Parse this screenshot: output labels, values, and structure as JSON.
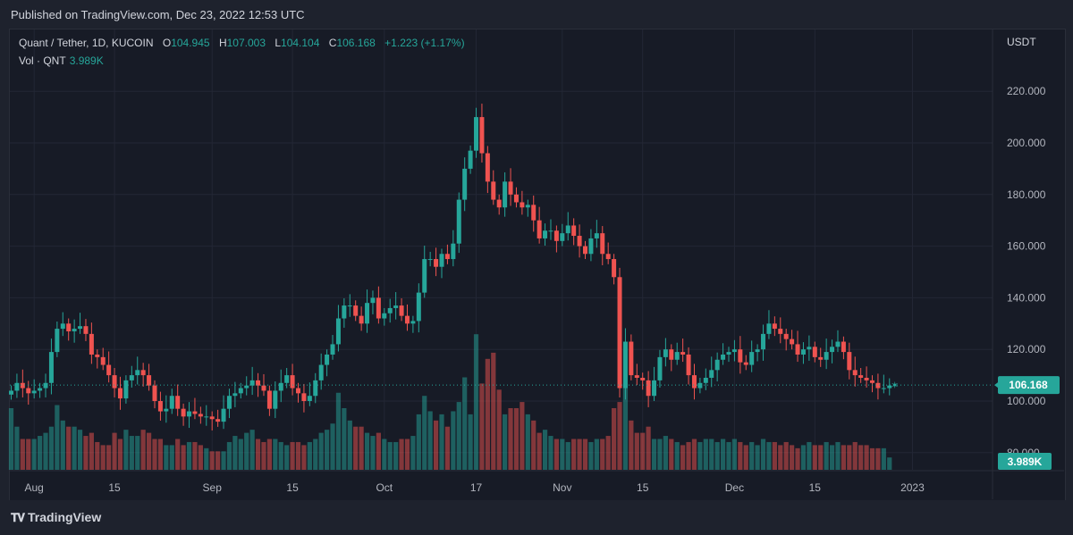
{
  "header": {
    "published": "Published on TradingView.com, Dec 23, 2022 12:53 UTC"
  },
  "legend": {
    "symbol": "Quant / Tether, 1D, KUCOIN",
    "open_label": "O",
    "open": "104.945",
    "high_label": "H",
    "high": "107.003",
    "low_label": "L",
    "low": "104.104",
    "close_label": "C",
    "close": "106.168",
    "change": "+1.223 (+1.17%)",
    "volume_label": "Vol · QNT",
    "volume": "3.989K"
  },
  "axis": {
    "currency": "USDT"
  },
  "badges": {
    "price": "106.168",
    "volume": "3.989K"
  },
  "footer": {
    "brand": "TradingView"
  },
  "colors": {
    "up": "#26a69a",
    "down": "#ef5350",
    "background": "#171b26",
    "grid": "#232735"
  },
  "chart_data": {
    "type": "candlestick",
    "y_ticks": [
      80,
      100,
      120,
      140,
      160,
      180,
      200,
      220
    ],
    "y_tick_labels": [
      "80.000",
      "100.000",
      "120.000",
      "140.000",
      "160.000",
      "180.000",
      "200.000",
      "220.000"
    ],
    "x_tick_labels": [
      {
        "label": "Aug",
        "date": "2022-08-01"
      },
      {
        "label": "15",
        "date": "2022-08-15"
      },
      {
        "label": "Sep",
        "date": "2022-09-01"
      },
      {
        "label": "15",
        "date": "2022-09-15"
      },
      {
        "label": "Oct",
        "date": "2022-10-01"
      },
      {
        "label": "17",
        "date": "2022-10-17"
      },
      {
        "label": "Nov",
        "date": "2022-11-01"
      },
      {
        "label": "15",
        "date": "2022-11-15"
      },
      {
        "label": "Dec",
        "date": "2022-12-01"
      },
      {
        "label": "15",
        "date": "2022-12-15"
      },
      {
        "label": "2023",
        "date": "2023-01-01"
      }
    ],
    "last_price": 106.168,
    "last_volume": "3.989K",
    "close_series": [
      104,
      107,
      105,
      103,
      104,
      105,
      107,
      119,
      128,
      130,
      127,
      128,
      129,
      126,
      118,
      117,
      114,
      110,
      105,
      101,
      108,
      110,
      112,
      110,
      106,
      100,
      96,
      97,
      102,
      97,
      94,
      96,
      95,
      94,
      94,
      93,
      92,
      97,
      102,
      103,
      105,
      106,
      108,
      106,
      104,
      97,
      104,
      107,
      110,
      105,
      103,
      100,
      102,
      108,
      114,
      118,
      122,
      132,
      137,
      137,
      133,
      130,
      138,
      140,
      132,
      134,
      136,
      137,
      133,
      130,
      131,
      142,
      155,
      155,
      152,
      157,
      155,
      161,
      178,
      190,
      197,
      210,
      196,
      185,
      178,
      175,
      185,
      180,
      177,
      175,
      176,
      170,
      163,
      166,
      166,
      162,
      165,
      168,
      164,
      160,
      157,
      163,
      165,
      157,
      155,
      148,
      105,
      123,
      110,
      109,
      108,
      102,
      108,
      117,
      120,
      116,
      119,
      118,
      110,
      105,
      107,
      109,
      112,
      116,
      118,
      119,
      120,
      115,
      114,
      119,
      120,
      126,
      130,
      128,
      126,
      124,
      122,
      118,
      120,
      121,
      117,
      116,
      119,
      121,
      123,
      119,
      112,
      110,
      109,
      108,
      107,
      105,
      105,
      106
    ],
    "volume_series": [
      20,
      14,
      10,
      10,
      10,
      11,
      12,
      14,
      21,
      16,
      14,
      14,
      13,
      11,
      12,
      9,
      8,
      8,
      12,
      10,
      13,
      11,
      11,
      13,
      12,
      10,
      10,
      8,
      8,
      10,
      8,
      9,
      9,
      8,
      7,
      6,
      6,
      6,
      9,
      11,
      10,
      12,
      13,
      10,
      9,
      10,
      10,
      9,
      8,
      9,
      9,
      8,
      9,
      10,
      12,
      13,
      15,
      25,
      20,
      16,
      14,
      14,
      12,
      11,
      12,
      10,
      9,
      9,
      10,
      10,
      11,
      18,
      24,
      19,
      16,
      18,
      14,
      19,
      22,
      30,
      18,
      44,
      28,
      36,
      38,
      26,
      18,
      20,
      20,
      22,
      18,
      16,
      12,
      13,
      11,
      10,
      10,
      9,
      10,
      10,
      10,
      9,
      10,
      10,
      11,
      20,
      22,
      28,
      16,
      12,
      12,
      14,
      10,
      10,
      11,
      10,
      9,
      8,
      9,
      10,
      9,
      10,
      10,
      9,
      10,
      9,
      10,
      9,
      8,
      9,
      8,
      10,
      9,
      9,
      8,
      9,
      8,
      7,
      8,
      9,
      8,
      8,
      9,
      8,
      9,
      8,
      8,
      9,
      8,
      8,
      7,
      7,
      7,
      4
    ],
    "volume_marked_bar": 81
  }
}
